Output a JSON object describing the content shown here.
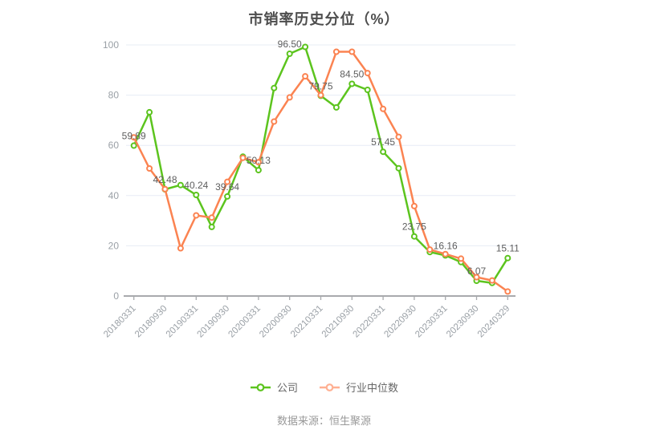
{
  "footer": {
    "text": "数据来源：恒生聚源"
  },
  "legend": {
    "items": [
      {
        "label": "公司",
        "swatch_color": "#5CC41E"
      },
      {
        "label": "行业中位数",
        "swatch_color": "#FFB092"
      }
    ]
  },
  "chart_data": {
    "type": "line",
    "title": "市销率历史分位（%）",
    "x_tick_labels": [
      "20180331",
      "20180930",
      "20190331",
      "20190930",
      "20200331",
      "20200930",
      "20210331",
      "20210930",
      "20220331",
      "20220930",
      "20230331",
      "20230930",
      "20240329"
    ],
    "n_points": 25,
    "tick_every": 2,
    "ylim": [
      0,
      100
    ],
    "yticks": [
      0,
      20,
      40,
      60,
      80,
      100
    ],
    "grid": true,
    "legend_position": "bottom",
    "series": [
      {
        "name": "公司",
        "color": "#5CC41E",
        "values": [
          59.89,
          73.2,
          42.48,
          44.2,
          40.24,
          27.5,
          39.64,
          55.5,
          50.13,
          82.8,
          96.5,
          99.2,
          79.75,
          75.1,
          84.5,
          82.1,
          57.45,
          50.9,
          23.75,
          17.5,
          16.16,
          13.5,
          6.07,
          5.2,
          15.11
        ]
      },
      {
        "name": "行业中位数",
        "color": "#FB8351",
        "values": [
          63.2,
          50.8,
          42.6,
          19.0,
          32.1,
          31.2,
          45.5,
          55.0,
          53.3,
          69.5,
          79.1,
          87.5,
          80.0,
          97.3,
          97.3,
          88.8,
          74.5,
          63.4,
          35.8,
          18.5,
          16.7,
          14.9,
          7.5,
          6.2,
          1.8
        ]
      }
    ],
    "point_labels": [
      {
        "index": 0,
        "text": "59.89"
      },
      {
        "index": 2,
        "text": "42.48"
      },
      {
        "index": 4,
        "text": "40.24"
      },
      {
        "index": 6,
        "text": "39.64"
      },
      {
        "index": 8,
        "text": "50.13"
      },
      {
        "index": 10,
        "text": "96.50"
      },
      {
        "index": 12,
        "text": "79.75"
      },
      {
        "index": 14,
        "text": "84.50"
      },
      {
        "index": 16,
        "text": "57.45"
      },
      {
        "index": 18,
        "text": "23.75"
      },
      {
        "index": 20,
        "text": "16.16"
      },
      {
        "index": 22,
        "text": "6.07"
      },
      {
        "index": 24,
        "text": "15.11"
      }
    ],
    "colors": {
      "axis": "#A8AAAD",
      "grid": "#E7ECF5",
      "tick_label": "#9aa0a6",
      "point_label": "#5e5e5e"
    }
  }
}
